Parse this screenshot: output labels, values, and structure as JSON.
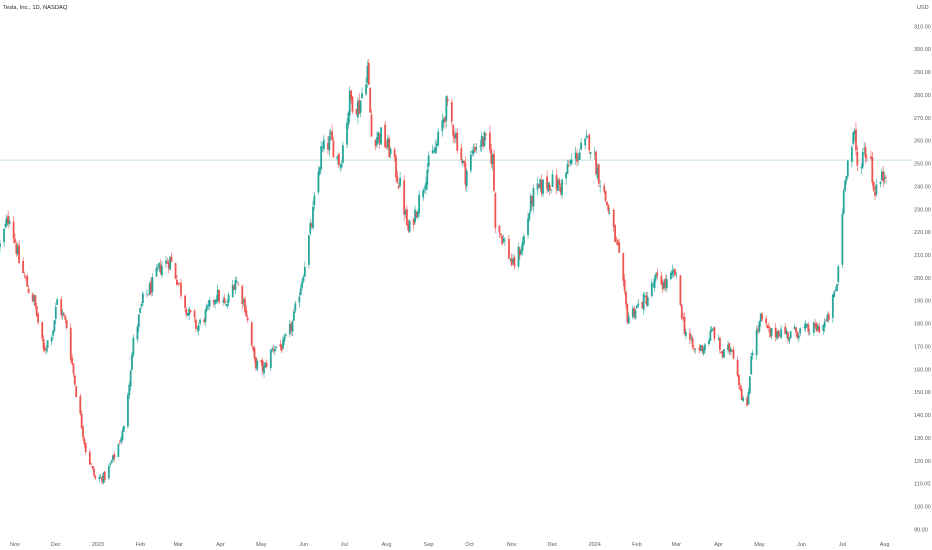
{
  "chart_data": {
    "type": "candlestick",
    "symbol_label": "Tesla, Inc., 1D, NASDAQ",
    "currency": "USD",
    "ylim": [
      88,
      318
    ],
    "y_ticks": [
      90,
      100,
      110,
      120,
      130,
      140,
      150,
      160,
      170,
      180,
      190,
      200,
      210,
      220,
      230,
      240,
      250,
      260,
      270,
      280,
      290,
      300,
      310
    ],
    "y_tick_labels": [
      "90.00",
      "100.00",
      "110.00",
      "120.00",
      "130.00",
      "140.00",
      "150.00",
      "160.00",
      "170.00",
      "180.00",
      "190.00",
      "200.00",
      "210.00",
      "220.00",
      "230.00",
      "240.00",
      "250.00",
      "260.00",
      "270.00",
      "280.00",
      "290.00",
      "300.00",
      "310.00"
    ],
    "x_start": "2022-10-21",
    "x_end": "2024-08-05",
    "x_ticks": [
      {
        "date": "2022-11-01",
        "label": "Nov"
      },
      {
        "date": "2022-12-01",
        "label": "Dec"
      },
      {
        "date": "2023-01-01",
        "label": "2023"
      },
      {
        "date": "2023-02-01",
        "label": "Feb"
      },
      {
        "date": "2023-03-01",
        "label": "Mar"
      },
      {
        "date": "2023-04-01",
        "label": "Apr"
      },
      {
        "date": "2023-05-01",
        "label": "May"
      },
      {
        "date": "2023-06-01",
        "label": "Jun"
      },
      {
        "date": "2023-07-01",
        "label": "Jul"
      },
      {
        "date": "2023-08-01",
        "label": "Aug"
      },
      {
        "date": "2023-09-01",
        "label": "Sep"
      },
      {
        "date": "2023-10-01",
        "label": "Oct"
      },
      {
        "date": "2023-11-01",
        "label": "Nov"
      },
      {
        "date": "2023-12-01",
        "label": "Dec"
      },
      {
        "date": "2024-01-01",
        "label": "2024"
      },
      {
        "date": "2024-02-01",
        "label": "Feb"
      },
      {
        "date": "2024-03-01",
        "label": "Mar"
      },
      {
        "date": "2024-04-01",
        "label": "Apr"
      },
      {
        "date": "2024-05-01",
        "label": "May"
      },
      {
        "date": "2024-06-01",
        "label": "Jun"
      },
      {
        "date": "2024-07-01",
        "label": "Jul"
      },
      {
        "date": "2024-08-01",
        "label": "Aug"
      }
    ],
    "last_price_line": 251.5,
    "colors": {
      "up": "#26a69a",
      "down": "#ef5350",
      "axis_text": "#555b66",
      "price_line": "#9ad2cc"
    },
    "close_path": [
      [
        "2022-10-21",
        214
      ],
      [
        "2022-10-28",
        228
      ],
      [
        "2022-11-04",
        207
      ],
      [
        "2022-11-11",
        195
      ],
      [
        "2022-11-15",
        190
      ],
      [
        "2022-11-22",
        168
      ],
      [
        "2022-11-29",
        178
      ],
      [
        "2022-12-02",
        190
      ],
      [
        "2022-12-09",
        179
      ],
      [
        "2022-12-16",
        150
      ],
      [
        "2022-12-23",
        125
      ],
      [
        "2022-12-30",
        112
      ],
      [
        "2023-01-06",
        113
      ],
      [
        "2023-01-13",
        122
      ],
      [
        "2023-01-20",
        134
      ],
      [
        "2023-01-27",
        172
      ],
      [
        "2023-02-03",
        190
      ],
      [
        "2023-02-10",
        197
      ],
      [
        "2023-02-16",
        205
      ],
      [
        "2023-02-23",
        208
      ],
      [
        "2023-03-01",
        198
      ],
      [
        "2023-03-08",
        185
      ],
      [
        "2023-03-15",
        178
      ],
      [
        "2023-03-22",
        185
      ],
      [
        "2023-03-29",
        193
      ],
      [
        "2023-04-05",
        187
      ],
      [
        "2023-04-12",
        200
      ],
      [
        "2023-04-19",
        188
      ],
      [
        "2023-04-26",
        163
      ],
      [
        "2023-05-03",
        160
      ],
      [
        "2023-05-10",
        170
      ],
      [
        "2023-05-17",
        170
      ],
      [
        "2023-05-24",
        180
      ],
      [
        "2023-05-31",
        200
      ],
      [
        "2023-06-07",
        224
      ],
      [
        "2023-06-14",
        255
      ],
      [
        "2023-06-21",
        260
      ],
      [
        "2023-06-28",
        250
      ],
      [
        "2023-07-05",
        278
      ],
      [
        "2023-07-12",
        275
      ],
      [
        "2023-07-18",
        292
      ],
      [
        "2023-07-21",
        262
      ],
      [
        "2023-07-28",
        262
      ],
      [
        "2023-08-04",
        255
      ],
      [
        "2023-08-11",
        240
      ],
      [
        "2023-08-17",
        220
      ],
      [
        "2023-08-24",
        232
      ],
      [
        "2023-08-31",
        248
      ],
      [
        "2023-09-07",
        258
      ],
      [
        "2023-09-14",
        275
      ],
      [
        "2023-09-21",
        262
      ],
      [
        "2023-09-28",
        245
      ],
      [
        "2023-10-05",
        258
      ],
      [
        "2023-10-12",
        260
      ],
      [
        "2023-10-18",
        252
      ],
      [
        "2023-10-20",
        225
      ],
      [
        "2023-10-27",
        215
      ],
      [
        "2023-11-02",
        205
      ],
      [
        "2023-11-09",
        215
      ],
      [
        "2023-11-16",
        235
      ],
      [
        "2023-11-23",
        240
      ],
      [
        "2023-11-30",
        242
      ],
      [
        "2023-12-07",
        240
      ],
      [
        "2023-12-14",
        250
      ],
      [
        "2023-12-21",
        255
      ],
      [
        "2023-12-28",
        260
      ],
      [
        "2024-01-04",
        245
      ],
      [
        "2024-01-11",
        230
      ],
      [
        "2024-01-18",
        212
      ],
      [
        "2024-01-25",
        183
      ],
      [
        "2024-02-01",
        187
      ],
      [
        "2024-02-08",
        191
      ],
      [
        "2024-02-15",
        199
      ],
      [
        "2024-02-22",
        197
      ],
      [
        "2024-02-29",
        202
      ],
      [
        "2024-03-07",
        178
      ],
      [
        "2024-03-14",
        168
      ],
      [
        "2024-03-21",
        170
      ],
      [
        "2024-03-28",
        177
      ],
      [
        "2024-04-04",
        166
      ],
      [
        "2024-04-11",
        170
      ],
      [
        "2024-04-18",
        149
      ],
      [
        "2024-04-22",
        142
      ],
      [
        "2024-04-25",
        167
      ],
      [
        "2024-05-02",
        182
      ],
      [
        "2024-05-09",
        175
      ],
      [
        "2024-05-16",
        177
      ],
      [
        "2024-05-23",
        175
      ],
      [
        "2024-05-30",
        177
      ],
      [
        "2024-06-06",
        177
      ],
      [
        "2024-06-13",
        178
      ],
      [
        "2024-06-20",
        181
      ],
      [
        "2024-06-27",
        197
      ],
      [
        "2024-07-03",
        246
      ],
      [
        "2024-07-10",
        262
      ],
      [
        "2024-07-12",
        248
      ],
      [
        "2024-07-17",
        256
      ],
      [
        "2024-07-22",
        252
      ],
      [
        "2024-07-24",
        238
      ],
      [
        "2024-07-31",
        244
      ],
      [
        "2024-08-02",
        248
      ]
    ]
  }
}
